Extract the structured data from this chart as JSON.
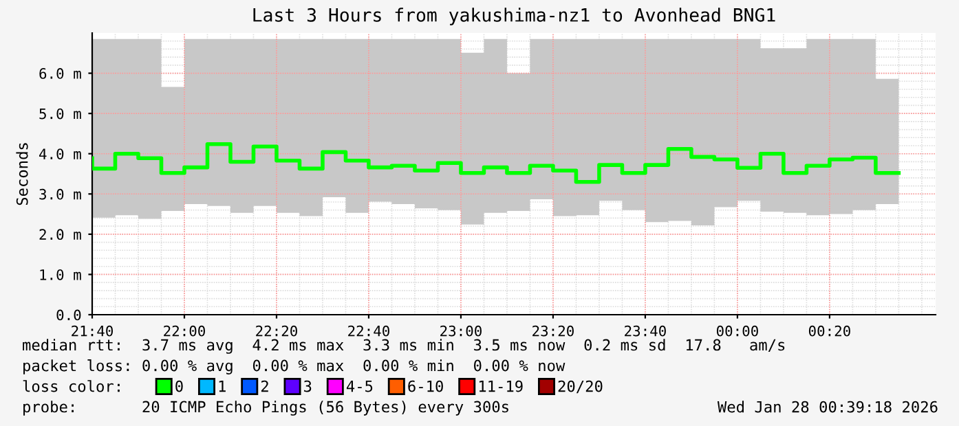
{
  "chart_data": {
    "type": "step",
    "title": "Last 3 Hours from yakushima-nz1 to Avonhead BNG1",
    "ylabel": "Seconds",
    "x": [
      "2026-01-27T21:40",
      "2026-01-27T21:45",
      "2026-01-27T21:50",
      "2026-01-27T21:55",
      "2026-01-27T22:00",
      "2026-01-27T22:05",
      "2026-01-27T22:10",
      "2026-01-27T22:15",
      "2026-01-27T22:20",
      "2026-01-27T22:25",
      "2026-01-27T22:30",
      "2026-01-27T22:35",
      "2026-01-27T22:40",
      "2026-01-27T22:45",
      "2026-01-27T22:50",
      "2026-01-27T22:55",
      "2026-01-27T23:00",
      "2026-01-27T23:05",
      "2026-01-27T23:10",
      "2026-01-27T23:15",
      "2026-01-27T23:20",
      "2026-01-27T23:25",
      "2026-01-27T23:30",
      "2026-01-27T23:35",
      "2026-01-27T23:40",
      "2026-01-27T23:45",
      "2026-01-27T23:50",
      "2026-01-27T23:55",
      "2026-01-28T00:00",
      "2026-01-28T00:05",
      "2026-01-28T00:10",
      "2026-01-28T00:15",
      "2026-01-28T00:20",
      "2026-01-28T00:25",
      "2026-01-28T00:30",
      "2026-01-28T00:35"
    ],
    "series": [
      {
        "name": "0",
        "color": "#00ff00",
        "values": [
          3.89,
          3.63,
          4.0,
          3.89,
          3.52,
          3.66,
          4.24,
          3.8,
          4.18,
          3.83,
          3.63,
          4.04,
          3.83,
          3.66,
          3.7,
          3.58,
          3.77,
          3.52,
          3.66,
          3.52,
          3.7,
          3.58,
          3.3,
          3.72,
          3.52,
          3.72,
          4.12,
          3.92,
          3.86,
          3.65,
          4.0,
          3.52,
          3.7,
          3.86,
          3.9,
          3.52
        ],
        "lower": [
          2.41,
          2.41,
          2.47,
          2.38,
          2.58,
          2.75,
          2.7,
          2.53,
          2.7,
          2.53,
          2.45,
          2.92,
          2.53,
          2.81,
          2.75,
          2.64,
          2.6,
          2.24,
          2.53,
          2.58,
          2.87,
          2.45,
          2.47,
          2.83,
          2.6,
          2.3,
          2.33,
          2.22,
          2.67,
          2.83,
          2.56,
          2.53,
          2.47,
          2.5,
          2.6,
          2.75
        ],
        "upper": [
          6.85,
          6.85,
          6.85,
          6.85,
          5.66,
          6.85,
          6.85,
          6.85,
          6.85,
          6.85,
          6.85,
          6.85,
          6.85,
          6.85,
          6.85,
          6.85,
          6.85,
          6.51,
          6.85,
          6.0,
          6.85,
          6.85,
          6.85,
          6.85,
          6.85,
          6.85,
          6.85,
          6.85,
          6.85,
          6.85,
          6.62,
          6.62,
          6.85,
          6.85,
          6.85,
          5.86
        ]
      },
      {
        "name": "1",
        "color": "#00b8ff",
        "values": [
          null,
          null,
          null,
          null,
          null,
          null,
          null,
          null,
          null,
          null,
          null,
          null,
          null,
          null,
          null,
          null,
          null,
          null,
          null,
          null,
          null,
          null,
          null,
          null,
          null,
          null,
          null,
          null,
          null,
          null,
          null,
          null,
          null,
          null,
          null,
          null
        ]
      },
      {
        "name": "2",
        "color": "#0059ff",
        "values": [
          null,
          null,
          null,
          null,
          null,
          null,
          null,
          null,
          null,
          null,
          null,
          null,
          null,
          null,
          null,
          null,
          null,
          null,
          null,
          null,
          null,
          null,
          null,
          null,
          null,
          null,
          null,
          null,
          null,
          null,
          null,
          null,
          null,
          null,
          null,
          null
        ]
      },
      {
        "name": "3",
        "color": "#5e00ff",
        "values": [
          null,
          null,
          null,
          null,
          null,
          null,
          null,
          null,
          null,
          null,
          null,
          null,
          null,
          null,
          null,
          null,
          null,
          null,
          null,
          null,
          null,
          null,
          null,
          null,
          null,
          null,
          null,
          null,
          null,
          null,
          null,
          null,
          null,
          null,
          null,
          null
        ]
      },
      {
        "name": "4-5",
        "color": "#ff00ff",
        "values": [
          null,
          null,
          null,
          null,
          null,
          null,
          null,
          null,
          null,
          null,
          null,
          null,
          null,
          null,
          null,
          null,
          null,
          null,
          null,
          null,
          null,
          null,
          null,
          null,
          null,
          null,
          null,
          null,
          null,
          null,
          null,
          null,
          null,
          null,
          null,
          null
        ]
      },
      {
        "name": "6-10",
        "color": "#ff5e00",
        "values": [
          null,
          null,
          null,
          null,
          null,
          null,
          null,
          null,
          null,
          null,
          null,
          null,
          null,
          null,
          null,
          null,
          null,
          null,
          null,
          null,
          null,
          null,
          null,
          null,
          null,
          null,
          null,
          null,
          null,
          null,
          null,
          null,
          null,
          null,
          null,
          null
        ]
      },
      {
        "name": "11-19",
        "color": "#ff0000",
        "values": [
          null,
          null,
          null,
          null,
          null,
          null,
          null,
          null,
          null,
          null,
          null,
          null,
          null,
          null,
          null,
          null,
          null,
          null,
          null,
          null,
          null,
          null,
          null,
          null,
          null,
          null,
          null,
          null,
          null,
          null,
          null,
          null,
          null,
          null,
          null,
          null
        ]
      },
      {
        "name": "20/20",
        "color": "#a10000",
        "values": [
          null,
          null,
          null,
          null,
          null,
          null,
          null,
          null,
          null,
          null,
          null,
          null,
          null,
          null,
          null,
          null,
          null,
          null,
          null,
          null,
          null,
          null,
          null,
          null,
          null,
          null,
          null,
          null,
          null,
          null,
          null,
          null,
          null,
          null,
          null,
          null
        ]
      }
    ],
    "xlim": [
      "2026-01-27T21:40",
      "2026-01-28T00:43"
    ],
    "xticks": [
      {
        "value": "2026-01-27T21:40",
        "label": "21:40"
      },
      {
        "value": "2026-01-27T22:00",
        "label": "22:00"
      },
      {
        "value": "2026-01-27T22:20",
        "label": "22:20"
      },
      {
        "value": "2026-01-27T22:40",
        "label": "22:40"
      },
      {
        "value": "2026-01-27T23:00",
        "label": "23:00"
      },
      {
        "value": "2026-01-27T23:20",
        "label": "23:20"
      },
      {
        "value": "2026-01-27T23:40",
        "label": "23:40"
      },
      {
        "value": "2026-01-28T00:00",
        "label": "00:00"
      },
      {
        "value": "2026-01-28T00:20",
        "label": "00:20"
      }
    ],
    "ylim": [
      0,
      7.0
    ],
    "yticks": [
      {
        "value": 0,
        "label": "0.0"
      },
      {
        "value": 1,
        "label": "1.0 m"
      },
      {
        "value": 2,
        "label": "2.0 m"
      },
      {
        "value": 3,
        "label": "3.0 m"
      },
      {
        "value": 4,
        "label": "4.0 m"
      },
      {
        "value": 5,
        "label": "5.0 m"
      },
      {
        "value": 6,
        "label": "6.0 m"
      }
    ],
    "grid": true,
    "legend": "bottom",
    "legend_title": "loss color:",
    "marker": "none",
    "line_style": "solid",
    "annotations": [
      "median rtt:  3.7 ms avg  4.2 ms max  3.3 ms min  3.5 ms now  0.2 ms sd  17.8   am/s",
      "packet loss: 0.00 % avg  0.00 % max  0.00 % min  0.00 % now",
      "probe:       20 ICMP Echo Pings (56 Bytes) every 300s",
      "Wed Jan 28 00:39:18 2026"
    ]
  }
}
